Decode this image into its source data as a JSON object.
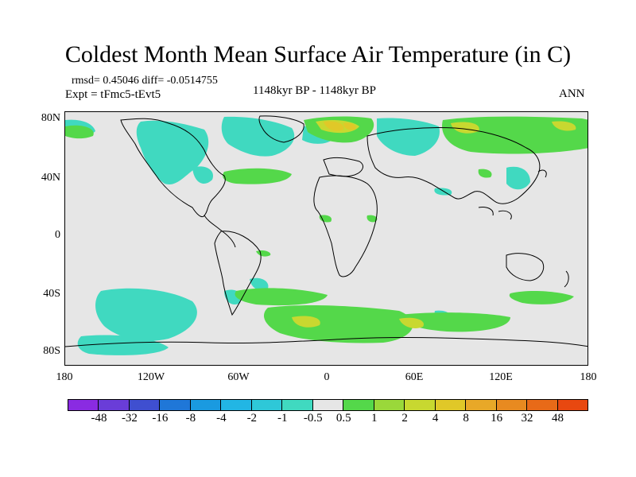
{
  "title": "Coldest Month Mean Surface Air Temperature (in C)",
  "stats": "rmsd= 0.45046 diff= -0.0514755",
  "expt": "Expt = tFmc5-tEvt5",
  "period": "1148kyr BP - 1148kyr BP",
  "season": "ANN",
  "lat_labels": [
    "80N",
    "40N",
    "0",
    "40S",
    "80S"
  ],
  "lon_labels": [
    "180",
    "120W",
    "60W",
    "0",
    "60E",
    "120E",
    "180"
  ],
  "colorbar": {
    "colors": [
      "#8a2be2",
      "#6a3dd8",
      "#3f4fd0",
      "#1f77d8",
      "#1a9ae0",
      "#22b6e4",
      "#2ec8d8",
      "#40d9c0",
      "#e6e6e6",
      "#54d84a",
      "#9ad83a",
      "#c8d830",
      "#e0c828",
      "#e8a828",
      "#e88a20",
      "#e86a18",
      "#e84810"
    ],
    "labels": [
      "-48",
      "-32",
      "-16",
      "-8",
      "-4",
      "-2",
      "-1",
      "-0.5",
      "0.5",
      "1",
      "2",
      "4",
      "8",
      "16",
      "32",
      "48"
    ]
  }
}
